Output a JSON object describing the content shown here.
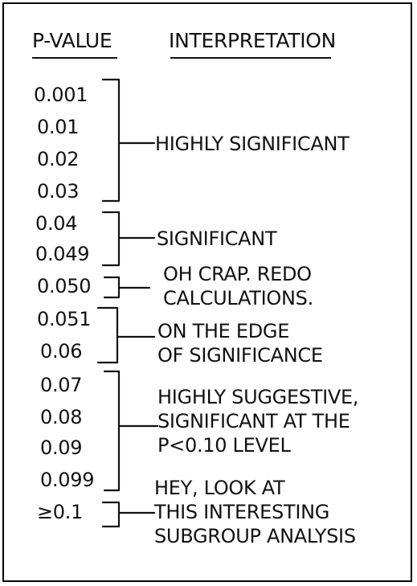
{
  "headers": {
    "p_value": "P-VALUE",
    "interpretation": "INTERPRETATION"
  },
  "groups": [
    {
      "p_values": [
        "0.001",
        "0.01",
        "0.02",
        "0.03"
      ],
      "interpretation": "HIGHLY SIGNIFICANT"
    },
    {
      "p_values": [
        "0.04",
        "0.049"
      ],
      "interpretation": "SIGNIFICANT"
    },
    {
      "p_values": [
        "0.050"
      ],
      "interpretation": "OH CRAP. REDO\nCALCULATIONS."
    },
    {
      "p_values": [
        "0.051",
        "0.06"
      ],
      "interpretation": "ON THE EDGE\nOF SIGNIFICANCE"
    },
    {
      "p_values": [
        "0.07",
        "0.08",
        "0.09",
        "0.099"
      ],
      "interpretation": "HIGHLY SUGGESTIVE,\nSIGNIFICANT AT THE\nP<0.10 LEVEL"
    },
    {
      "p_values": [
        "≥0.1"
      ],
      "interpretation": "HEY, LOOK AT\nTHIS INTERESTING\nSUBGROUP ANALYSIS"
    }
  ]
}
